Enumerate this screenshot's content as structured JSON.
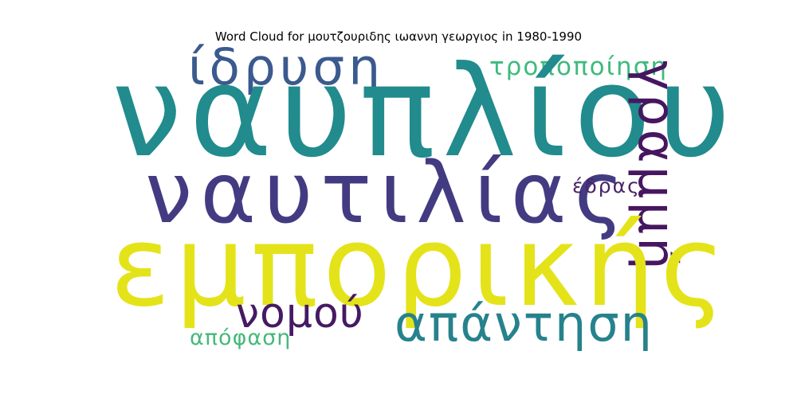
{
  "title": "Word Cloud for μουτζουριδης ιωαννη γεωργιος in 1980-1990",
  "words": [
    {
      "id": "idrysi",
      "text": "ίδρυση",
      "color": "#3b5a8e"
    },
    {
      "id": "tropopoiisi",
      "text": "τροποποίηση",
      "color": "#3dbb7d"
    },
    {
      "id": "nafpliou",
      "text": "ναυπλίου",
      "color": "#218b8d"
    },
    {
      "id": "naftilias",
      "text": "ναυτιλίας",
      "color": "#433b82"
    },
    {
      "id": "edras",
      "text": "έδρας",
      "color": "#4b2466"
    },
    {
      "id": "grammi",
      "text": "γραμμή",
      "color": "#461660"
    },
    {
      "id": "emporikis",
      "text": "εμπορικής",
      "color": "#e4e31a"
    },
    {
      "id": "nomou",
      "text": "νομού",
      "color": "#451a63"
    },
    {
      "id": "apantisi",
      "text": "απάντηση",
      "color": "#26828c"
    },
    {
      "id": "apofasi",
      "text": "απόφαση",
      "color": "#45b97c"
    }
  ]
}
